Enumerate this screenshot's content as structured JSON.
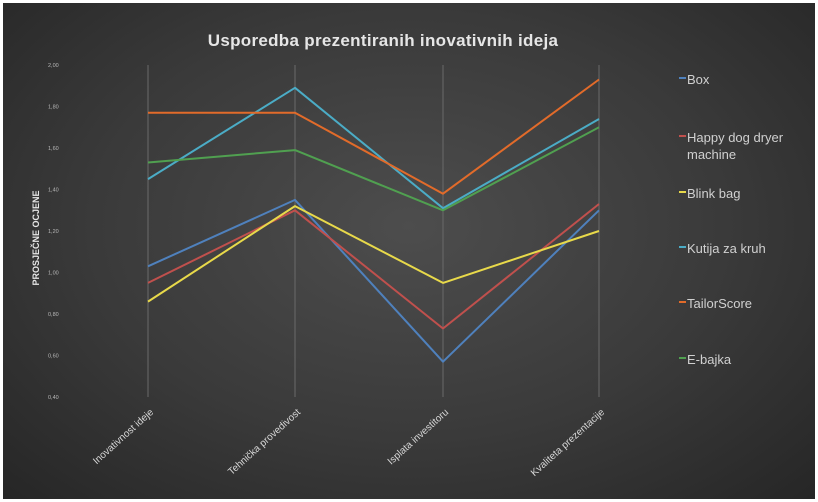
{
  "chart_data": {
    "type": "line",
    "title": "Usporedba prezentiranih inovativnih ideja",
    "xlabel": "",
    "ylabel": "PROSJEČNE OCJENE",
    "categories": [
      "Inovativnost ideje",
      "Tehnička provedivost",
      "Isplata investitoru",
      "Kvaliteta prezentacije"
    ],
    "yticks": [
      "0,40",
      "0,60",
      "0,80",
      "1,00",
      "1,20",
      "1,40",
      "1,60",
      "1,80",
      "2,00"
    ],
    "ylim": [
      0.4,
      2.0
    ],
    "grid": false,
    "legend": "right",
    "series": [
      {
        "name": "Box",
        "color": "#4f81bd",
        "values": [
          1.03,
          1.35,
          0.57,
          1.3
        ]
      },
      {
        "name": "Happy dog dryer machine",
        "color": "#c0504d",
        "values": [
          0.95,
          1.3,
          0.73,
          1.33
        ]
      },
      {
        "name": "Blink bag",
        "color": "#e8d94a",
        "values": [
          0.86,
          1.32,
          0.95,
          1.2
        ]
      },
      {
        "name": "Kutija za kruh",
        "color": "#4bacc6",
        "values": [
          1.45,
          1.89,
          1.31,
          1.74
        ]
      },
      {
        "name": "TailorScore",
        "color": "#e26b2a",
        "values": [
          1.77,
          1.77,
          1.38,
          1.93
        ]
      },
      {
        "name": "E-bajka",
        "color": "#50a050",
        "values": [
          1.53,
          1.59,
          1.3,
          1.7
        ]
      }
    ]
  }
}
